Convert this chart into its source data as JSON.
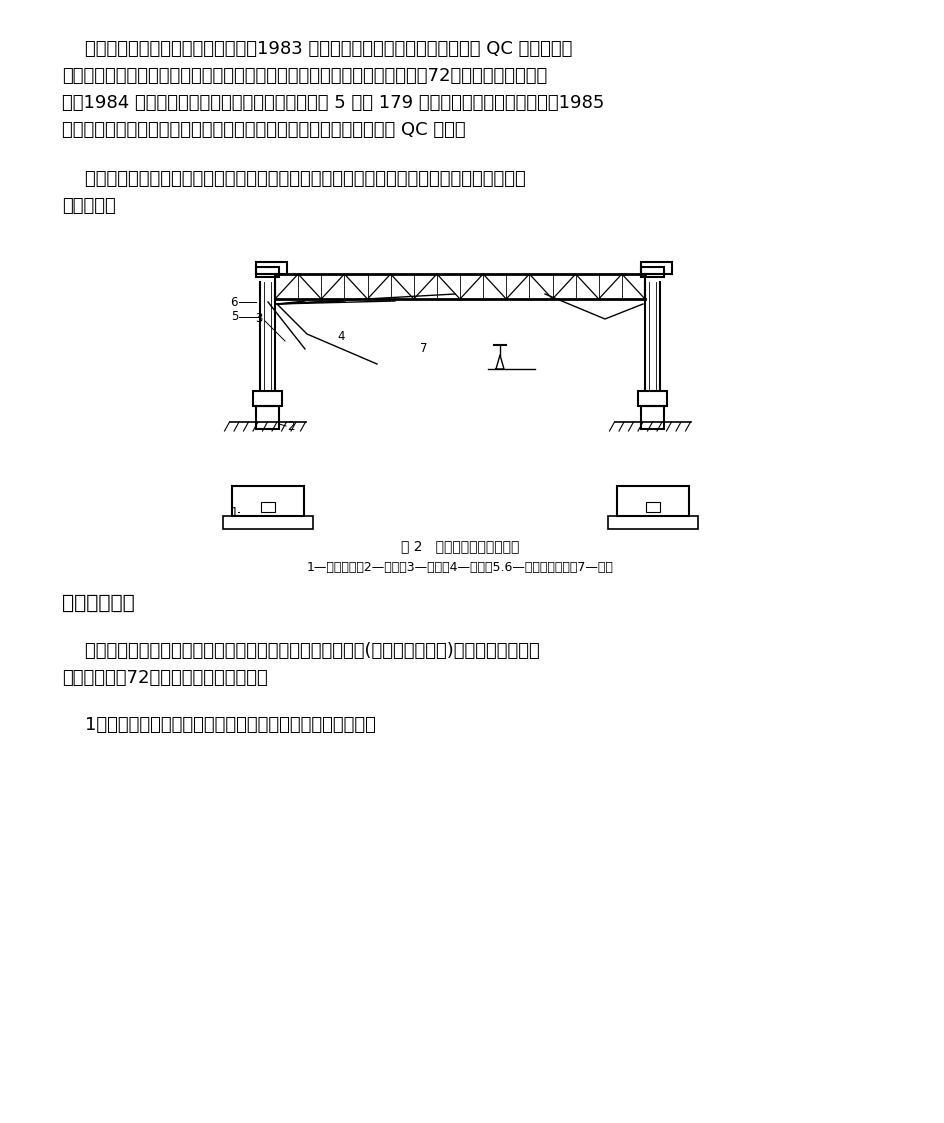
{
  "bg_color": "#ffffff",
  "text_color": "#000000",
  "para1_lines": [
    "    为能较好地完成这项新技术的实施，1983 年成立了由设计、施工、厂家组成的 QC 技术攻关小",
    "组，通过调查、研究、计算、试验等工作，制定了严密的施工组织和施工工色72，并据此指导施工安",
    "装。1984 年，用本工法安全高质量的完成了京秦线 5 个站 179 组框架式硬横跨的施工安装。1985",
    "年在铁道部工程建设系统质量管理成果发布会上被评为优秀成果和优秀 QC 小组。"
  ],
  "para2_lines": [
    "    本工法的开发使框架式硬横跨这种新结构、新技术迅速转化为生产力，所以，本工法具有一定",
    "的先进性。"
  ],
  "fig_caption1": "图 2   硬横跨支持结构示意图",
  "fig_caption2": "1—基础垫层；2—基础；3—支柱；4—端棁；5.6—甲、乙型揽箍；7—中棁",
  "section_title": "二、工法特点",
  "para3_lines": [
    "    本工法是由杯形基础的浇制、预应力钔筋混凝土等径圆支柱(以下简称圆支柱)的整正、硬横棁安",
    "装三套新工色72组成，它具有以下特点："
  ],
  "para4": "    1．比较先进，有益于硬横跨这种新支持结构的推广和应用。"
}
